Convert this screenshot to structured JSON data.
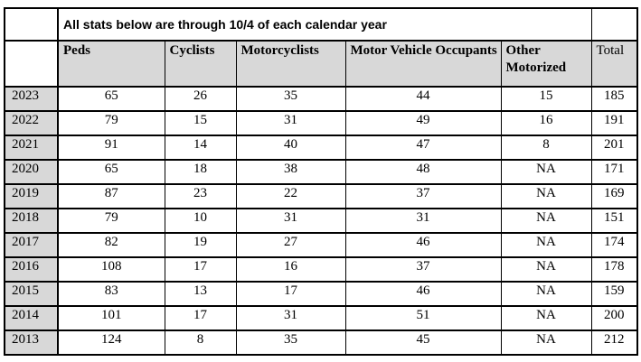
{
  "table": {
    "note": "All stats below are through 10/4 of each calendar year",
    "columns": [
      "Peds",
      "Cyclists",
      "Motorcyclists",
      "Motor Vehicle Occupants",
      "Other Motorized",
      "Total"
    ],
    "rows": [
      {
        "year": "2023",
        "values": [
          "65",
          "26",
          "35",
          "44",
          "15",
          "185"
        ]
      },
      {
        "year": "2022",
        "values": [
          "79",
          "15",
          "31",
          "49",
          "16",
          "191"
        ]
      },
      {
        "year": "2021",
        "values": [
          "91",
          "14",
          "40",
          "47",
          "8",
          "201"
        ]
      },
      {
        "year": "2020",
        "values": [
          "65",
          "18",
          "38",
          "48",
          "NA",
          "171"
        ]
      },
      {
        "year": "2019",
        "values": [
          "87",
          "23",
          "22",
          "37",
          "NA",
          "169"
        ]
      },
      {
        "year": "2018",
        "values": [
          "79",
          "10",
          "31",
          "31",
          "NA",
          "151"
        ]
      },
      {
        "year": "2017",
        "values": [
          "82",
          "19",
          "27",
          "46",
          "NA",
          "174"
        ]
      },
      {
        "year": "2016",
        "values": [
          "108",
          "17",
          "16",
          "37",
          "NA",
          "178"
        ]
      },
      {
        "year": "2015",
        "values": [
          "83",
          "13",
          "17",
          "46",
          "NA",
          "159"
        ]
      },
      {
        "year": "2014",
        "values": [
          "101",
          "17",
          "31",
          "51",
          "NA",
          "200"
        ]
      },
      {
        "year": "2013",
        "values": [
          "124",
          "8",
          "35",
          "45",
          "NA",
          "212"
        ]
      }
    ]
  },
  "colors": {
    "header_gray": "#d8d8d8",
    "border": "#000000",
    "background": "#ffffff"
  }
}
